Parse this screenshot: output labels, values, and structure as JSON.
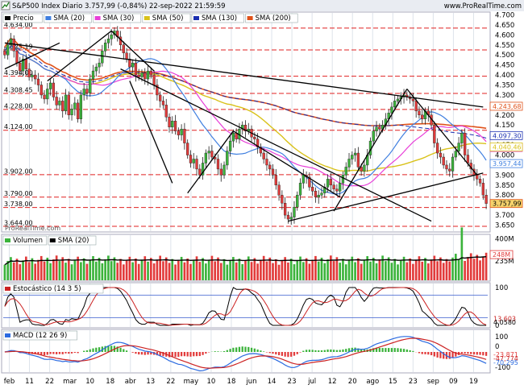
{
  "header": {
    "title": "S&P500 Index Diario 3.757,99 (-0,84%) 22-sep-2022 21:59:59",
    "site": "www.ProRealTime.com",
    "watermark": "ProRealTime.com"
  },
  "legends": {
    "price": [
      {
        "label": "Precio",
        "color": "#000000"
      },
      {
        "label": "SMA (20)",
        "color": "#3f7fe0"
      },
      {
        "label": "SMA (30)",
        "color": "#e83fd8"
      },
      {
        "label": "SMA (50)",
        "color": "#d9c21a"
      },
      {
        "label": "SMA (130)",
        "color": "#1a2fb0"
      },
      {
        "label": "SMA (200)",
        "color": "#e0521a"
      }
    ],
    "volume": [
      {
        "label": "Volumen",
        "color": "#3bb33b"
      },
      {
        "label": "SMA (20)",
        "color": "#000000"
      }
    ],
    "stoch": [
      {
        "label": "Estocástico (14 3 5)",
        "color": "#cc2222"
      }
    ],
    "macd": [
      {
        "label": "MACD (12 26 9)",
        "color": "#2a6ae0"
      }
    ]
  },
  "colors": {
    "up": "#3bb33b",
    "down": "#e23b3b",
    "level": "#e02020",
    "trend": "#000000"
  },
  "chart_data": [
    {
      "type": "candlestick",
      "title": "S&P500 Index Diario",
      "ylim": [
        3620,
        4710
      ],
      "y_ticks": [
        "4.700",
        "4.650",
        "4.600",
        "4.550",
        "4.500",
        "4.450",
        "4.400",
        "4.350",
        "4.300",
        "4.250",
        "4.200",
        "4.150",
        "4.100",
        "4.050",
        "4.000",
        "3.950",
        "3.900",
        "3.850",
        "3.800",
        "3.750",
        "3.700",
        "3.650"
      ],
      "level_labels": [
        {
          "text": "4.634,00",
          "value": 4634
        },
        {
          "text": "4.525,19",
          "value": 4525
        },
        {
          "text": "4.394,00",
          "value": 4394
        },
        {
          "text": "4.308,45",
          "value": 4308
        },
        {
          "text": "4.228,00",
          "value": 4228
        },
        {
          "text": "4.124,00",
          "value": 4124
        },
        {
          "text": "3.902,00",
          "value": 3902
        },
        {
          "text": "3.790,00",
          "value": 3790
        },
        {
          "text": "3.738,00",
          "value": 3738
        },
        {
          "text": "3.644,00",
          "value": 3644
        }
      ],
      "last_value_tags": [
        {
          "text": "4.243,68",
          "value": 4243.68,
          "color": "#e0521a"
        },
        {
          "text": "4.097,30",
          "value": 4097.3,
          "color": "#1a2fb0"
        },
        {
          "text": "4.037,73",
          "value": 4037.73,
          "color": "#e83fd8"
        },
        {
          "text": "4.040,46",
          "value": 4040.46,
          "color": "#d9c21a"
        },
        {
          "text": "3.957,44",
          "value": 3957.44,
          "color": "#3f7fe0"
        },
        {
          "text": "3.757,99",
          "value": 3757.99,
          "color": "#e0521a",
          "highlight": true
        }
      ],
      "closes": [
        4500,
        4550,
        4580,
        4520,
        4460,
        4420,
        4480,
        4430,
        4390,
        4400,
        4380,
        4350,
        4300,
        4280,
        4330,
        4360,
        4290,
        4250,
        4270,
        4220,
        4300,
        4200,
        4230,
        4260,
        4180,
        4300,
        4330,
        4310,
        4380,
        4420,
        4440,
        4460,
        4520,
        4560,
        4580,
        4600,
        4620,
        4590,
        4550,
        4510,
        4480,
        4440,
        4460,
        4400,
        4390,
        4410,
        4380,
        4420,
        4400,
        4350,
        4300,
        4270,
        4250,
        4190,
        4140,
        4170,
        4120,
        4100,
        4130,
        4060,
        4000,
        3960,
        3980,
        3930,
        3900,
        3960,
        4010,
        4020,
        3990,
        3980,
        3930,
        3900,
        3950,
        4020,
        4070,
        4110,
        4080,
        4130,
        4150,
        4120,
        4130,
        4090,
        4080,
        4040,
        4010,
        3980,
        3950,
        3930,
        3900,
        3850,
        3800,
        3760,
        3700,
        3680,
        3690,
        3740,
        3800,
        3860,
        3900,
        3890,
        3840,
        3820,
        3790,
        3800,
        3810,
        3840,
        3880,
        3850,
        3830,
        3820,
        3860,
        3900,
        3940,
        3980,
        4000,
        4010,
        3940,
        3920,
        3950,
        4000,
        4070,
        4120,
        4140,
        4130,
        4150,
        4180,
        4210,
        4240,
        4270,
        4280,
        4290,
        4300,
        4290,
        4280,
        4270,
        4220,
        4200,
        4180,
        4220,
        4200,
        4150,
        4060,
        4010,
        3990,
        3950,
        3930,
        3920,
        3990,
        4020,
        4060,
        4110,
        4000,
        3960,
        3930,
        3900,
        3880,
        3860,
        3800,
        3758
      ],
      "trendlines": [
        {
          "from": [
            0,
            4560
          ],
          "to": [
            157,
            4240
          ]
        },
        {
          "from": [
            0,
            4430
          ],
          "to": [
            18,
            4560
          ]
        },
        {
          "from": [
            14,
            4370
          ],
          "to": [
            35,
            4620
          ]
        },
        {
          "from": [
            35,
            4620
          ],
          "to": [
            49,
            4420
          ]
        },
        {
          "from": [
            38,
            4430
          ],
          "to": [
            140,
            3670
          ]
        },
        {
          "from": [
            41,
            4370
          ],
          "to": [
            55,
            3860
          ]
        },
        {
          "from": [
            60,
            3810
          ],
          "to": [
            75,
            4120
          ]
        },
        {
          "from": [
            75,
            4120
          ],
          "to": [
            110,
            3790
          ]
        },
        {
          "from": [
            93,
            3670
          ],
          "to": [
            157,
            3910
          ]
        },
        {
          "from": [
            108,
            3720
          ],
          "to": [
            132,
            4330
          ]
        },
        {
          "from": [
            132,
            4330
          ],
          "to": [
            155,
            3900
          ]
        }
      ],
      "x_labels": [
        "feb",
        "11",
        "22",
        "mar",
        "10",
        "18",
        "abr",
        "13",
        "22",
        "may",
        "10",
        "18",
        "jun",
        "14",
        "23",
        "jul",
        "12",
        "20",
        "ago",
        "15",
        "23",
        "sep",
        "09",
        "19"
      ]
    },
    {
      "type": "bar",
      "title": "Volumen",
      "y_ticks": [
        "400M",
        "235M"
      ],
      "last_value": "248M",
      "sma_last": "235M"
    },
    {
      "type": "line",
      "title": "Estocástico (14 3 5)",
      "y_ticks": [
        "100",
        "0"
      ],
      "last_values": [
        "13.603",
        "4,0580"
      ]
    },
    {
      "type": "line",
      "title": "MACD (12 26 9)",
      "y_ticks": [
        "100",
        "0",
        "-100"
      ],
      "last_values": [
        "-23,871",
        "-47,774",
        "-70,295"
      ]
    }
  ]
}
